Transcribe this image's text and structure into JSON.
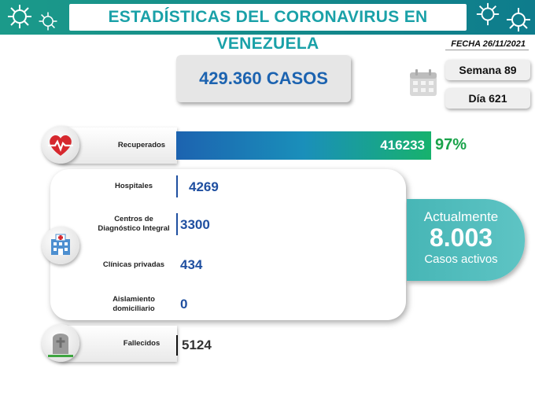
{
  "header": {
    "title": "ESTADÍSTICAS DEL CORONAVIRUS EN VENEZUELA",
    "date": "FECHA 26/11/2021"
  },
  "summary": {
    "cases": "429.360 CASOS",
    "week": "Semana 89",
    "day": "Día 621"
  },
  "recovered": {
    "label": "Recuperados",
    "value": "416233",
    "percent": "97%"
  },
  "care": [
    {
      "label": "Hospitales",
      "value": "4269"
    },
    {
      "label": "Centros de Diagnóstico Integral",
      "value": "3300"
    },
    {
      "label": "Clínicas privadas",
      "value": "434"
    },
    {
      "label": "Aislamiento domiciliario",
      "value": "0"
    }
  ],
  "active": {
    "line1": "Actualmente",
    "count": "8.003",
    "line2": "Casos activos"
  },
  "deaths": {
    "label": "Fallecidos",
    "value": "5124"
  },
  "colors": {
    "teal": "#1aa1a8",
    "blue": "#1f4fa0",
    "green": "#1aa34a",
    "banner": "#1b9a8a"
  },
  "icons": [
    "virus-icon",
    "calendar-icon",
    "heart-pulse-icon",
    "hospital-icon",
    "gravestone-icon"
  ]
}
